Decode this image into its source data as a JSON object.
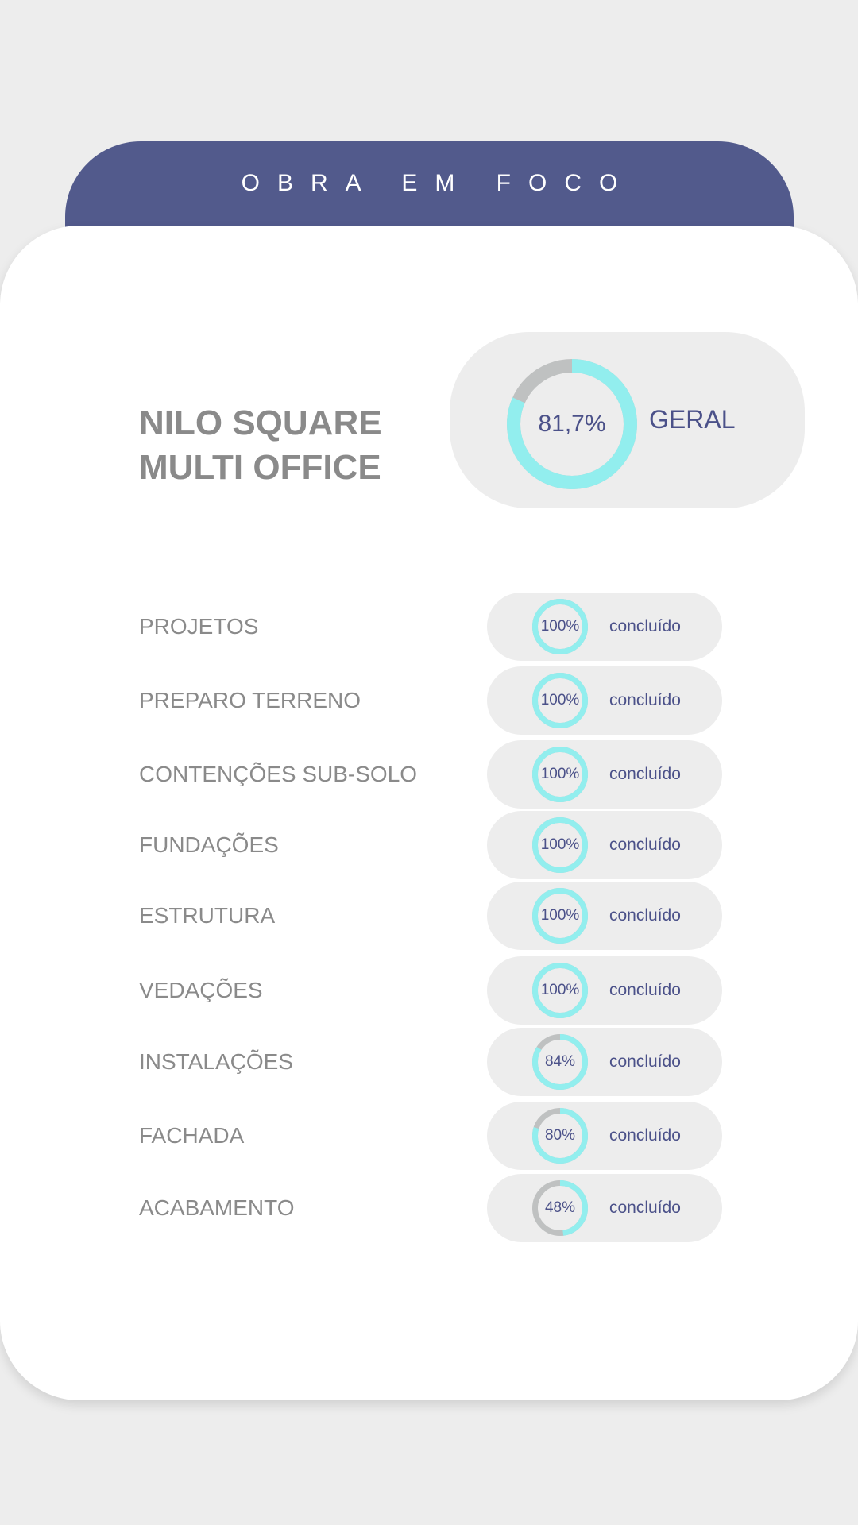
{
  "header": {
    "title": "OBRA EM FOCO"
  },
  "project": {
    "name_line1": "NILO SQUARE",
    "name_line2": "MULTI OFFICE"
  },
  "overall": {
    "value": 81.7,
    "value_label": "81,7%",
    "label": "GERAL"
  },
  "colors": {
    "accent": "#525a8c",
    "progress": "#92eeee",
    "remaining": "#bfc1c1",
    "text_primary": "#4b5189",
    "text_gray": "#8a8a8a"
  },
  "stages": [
    {
      "label": "PROJETOS",
      "value": 100,
      "value_label": "100%",
      "status": "concluído"
    },
    {
      "label": "PREPARO TERRENO",
      "value": 100,
      "value_label": "100%",
      "status": "concluído"
    },
    {
      "label": "CONTENÇÕES SUB-SOLO",
      "value": 100,
      "value_label": "100%",
      "status": "concluído"
    },
    {
      "label": "FUNDAÇÕES",
      "value": 100,
      "value_label": "100%",
      "status": "concluído"
    },
    {
      "label": "ESTRUTURA",
      "value": 100,
      "value_label": "100%",
      "status": "concluído"
    },
    {
      "label": "VEDAÇÕES",
      "value": 100,
      "value_label": "100%",
      "status": "concluído"
    },
    {
      "label": "INSTALAÇÕES",
      "value": 84,
      "value_label": "84%",
      "status": "concluído"
    },
    {
      "label": "FACHADA",
      "value": 80,
      "value_label": "80%",
      "status": "concluído"
    },
    {
      "label": "ACABAMENTO",
      "value": 48,
      "value_label": "48%",
      "status": "concluído"
    }
  ]
}
